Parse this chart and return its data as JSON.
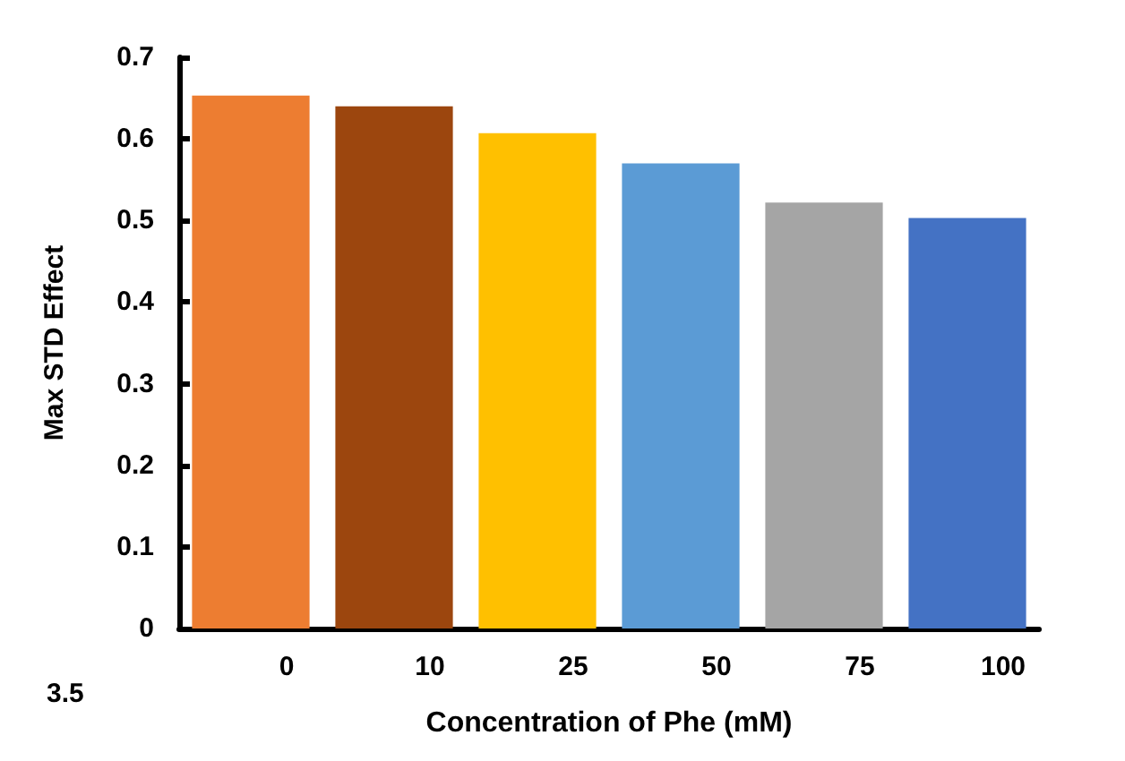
{
  "chart_data": {
    "type": "bar",
    "xlabel": "Concentration of Phe (mM)",
    "ylabel": "Max STD Effect",
    "categories": [
      "0",
      "10",
      "25",
      "50",
      "75",
      "100"
    ],
    "values": [
      0.653,
      0.64,
      0.607,
      0.57,
      0.522,
      0.503
    ],
    "colors": [
      "#ed7d31",
      "#9c460e",
      "#ffc000",
      "#5b9bd5",
      "#a5a5a5",
      "#4472c4"
    ],
    "ylim": [
      0,
      0.7
    ],
    "yticks": [
      0,
      0.1,
      0.2,
      0.3,
      0.4,
      0.5,
      0.6,
      0.7
    ],
    "grid": false,
    "annotations": [
      "3.5"
    ]
  }
}
